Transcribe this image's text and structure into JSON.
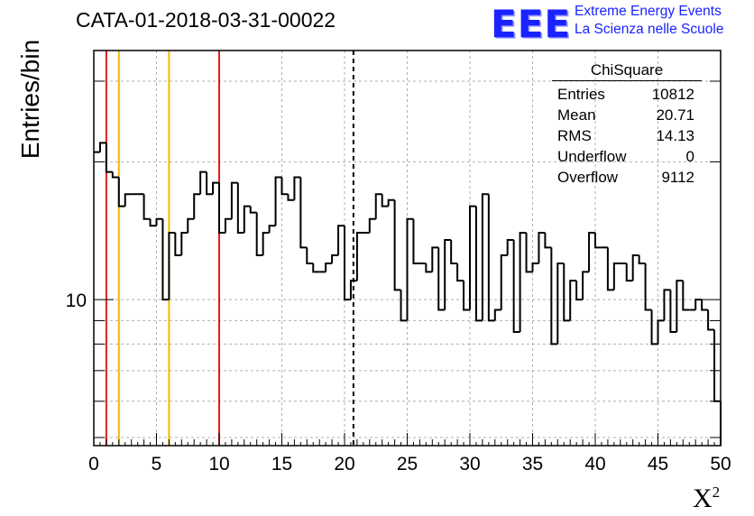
{
  "header": {
    "run_title": "CATA-01-2018-03-31-00022",
    "logo_text": "EEE",
    "logo_line1": "Extreme Energy Events",
    "logo_line2": "La Scienza nelle Scuole"
  },
  "stats_box": {
    "title": "ChiSquare",
    "rows": [
      {
        "label": "Entries",
        "value": "10812"
      },
      {
        "label": "Mean",
        "value": "20.71"
      },
      {
        "label": "RMS",
        "value": "14.13"
      },
      {
        "label": "Underflow",
        "value": "0"
      },
      {
        "label": "Overflow",
        "value": "9112"
      }
    ]
  },
  "colors": {
    "red_marker": "#e0201b",
    "yellow_marker": "#f5b800",
    "hist": "#000000",
    "grid": "#b0b0b0",
    "logo": "#1a23ff"
  },
  "chart_data": {
    "type": "histogram",
    "title": "CATA-01-2018-03-31-00022",
    "xlabel": "X",
    "xlabel_superscript": "2",
    "ylabel": "Entries/bin",
    "x_range": [
      0,
      50
    ],
    "y_scale": "log",
    "y_range": [
      4.8,
      35
    ],
    "grid": true,
    "bin_width": 0.5,
    "x_ticks": [
      "0",
      "5",
      "10",
      "15",
      "20",
      "25",
      "30",
      "35",
      "40",
      "45",
      "50"
    ],
    "y_tick_labels": [
      {
        "value": 10,
        "label": "10"
      }
    ],
    "bin_values": [
      21,
      22,
      19,
      18.5,
      16,
      17,
      17,
      17,
      15,
      14.5,
      15,
      10,
      14,
      12.5,
      14,
      15,
      17,
      19,
      17,
      18,
      14,
      15,
      18,
      14,
      16,
      15.5,
      12.5,
      14,
      14.5,
      18.5,
      17,
      16.5,
      18.5,
      13,
      12,
      11.5,
      11.5,
      12,
      12.5,
      14.5,
      10,
      11,
      14,
      14,
      15,
      17,
      16,
      16.5,
      10.5,
      9,
      15,
      12,
      12,
      11.5,
      13,
      9.5,
      13.5,
      12,
      11,
      9.5,
      16,
      9,
      17,
      9,
      9.5,
      12.5,
      13.5,
      8.5,
      14,
      11.5,
      12,
      14,
      13,
      8,
      12,
      9,
      11,
      10,
      11.5,
      14,
      13,
      13,
      10.5,
      12,
      12,
      11,
      12.5,
      12,
      9.5,
      8,
      9,
      10.5,
      8.5,
      11,
      9.5,
      9.5,
      10,
      9.5,
      8.6,
      6.0
    ],
    "vertical_markers": [
      {
        "x": 1,
        "color": "red",
        "style": "solid"
      },
      {
        "x": 2,
        "color": "yellow",
        "style": "solid"
      },
      {
        "x": 6,
        "color": "yellow",
        "style": "solid"
      },
      {
        "x": 10,
        "color": "red",
        "style": "solid"
      },
      {
        "x": 20.71,
        "color": "black",
        "style": "dashed"
      }
    ]
  }
}
